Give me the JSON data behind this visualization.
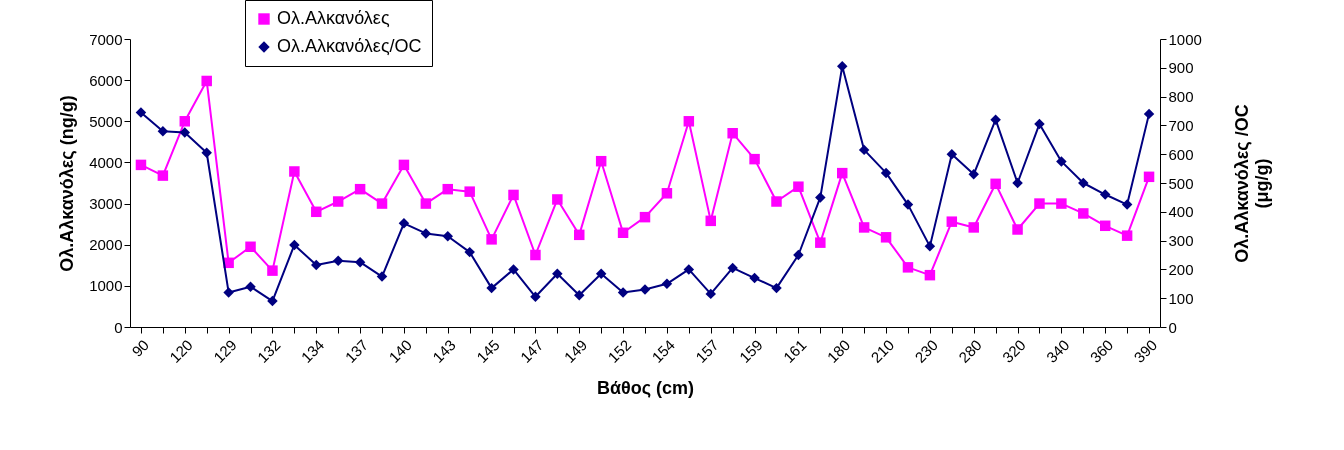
{
  "chart_data": {
    "type": "line",
    "xlabel": "Βάθος (cm)",
    "ylabel": "Ολ.Αλκανόλες (ng/g)",
    "y2label": "Ολ.Αλκανόλες /OC\n(μg/g)",
    "categories": [
      "90",
      null,
      "120",
      null,
      "129",
      null,
      "132",
      null,
      "134",
      null,
      "137",
      null,
      "140",
      null,
      "143",
      null,
      "145",
      null,
      "147",
      null,
      "149",
      null,
      "152",
      null,
      "154",
      null,
      "157",
      null,
      "159",
      null,
      "161",
      null,
      "180",
      null,
      "210",
      null,
      "230",
      null,
      "280",
      null,
      "320",
      null,
      "340",
      null,
      "360",
      null,
      "390"
    ],
    "series": [
      {
        "name": "Ολ.Αλκανόλες",
        "color": "#ff00ff",
        "marker": "square",
        "values": [
          3940,
          3680,
          5000,
          5980,
          1560,
          1950,
          1370,
          3780,
          2800,
          3050,
          3350,
          3000,
          3940,
          3000,
          3350,
          3290,
          2130,
          3210,
          1750,
          3100,
          2240,
          4030,
          2290,
          2670,
          3250,
          5000,
          2580,
          4710,
          4080,
          3050,
          3410,
          2050,
          3740,
          2420,
          2180,
          1450,
          1260,
          2560,
          2420,
          3480,
          2370,
          3000,
          3000,
          2760,
          2460,
          2220,
          3650
        ]
      },
      {
        "name": "Ολ.Αλκανόλες/OC",
        "color": "#000080",
        "marker": "diamond",
        "axis": "y2",
        "values": [
          745,
          680,
          675,
          605,
          120,
          140,
          90,
          285,
          215,
          230,
          225,
          175,
          360,
          325,
          315,
          260,
          135,
          200,
          105,
          185,
          110,
          185,
          120,
          130,
          150,
          200,
          115,
          205,
          170,
          135,
          250,
          450,
          905,
          615,
          535,
          425,
          280,
          600,
          530,
          720,
          500,
          705,
          575,
          500,
          460,
          425,
          740
        ]
      }
    ],
    "ylim": [
      0,
      7000
    ],
    "yticks": [
      0,
      1000,
      2000,
      3000,
      4000,
      5000,
      6000,
      7000
    ],
    "y2lim": [
      0,
      1000
    ],
    "y2ticks": [
      0,
      100,
      200,
      300,
      400,
      500,
      600,
      700,
      800,
      900,
      1000
    ],
    "grid": false,
    "legend": "top left"
  }
}
